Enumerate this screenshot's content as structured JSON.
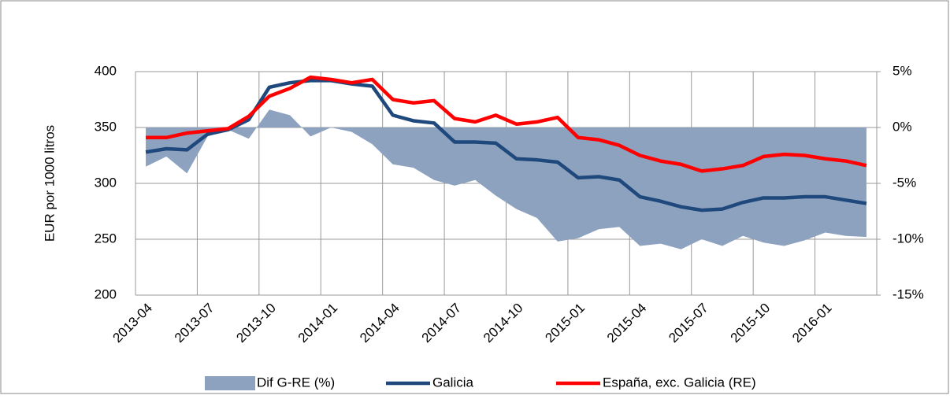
{
  "chart_data": {
    "type": "line",
    "y_label": "EUR por 1000 litros",
    "categories": [
      "2013-04",
      null,
      null,
      "2013-07",
      null,
      null,
      "2013-10",
      null,
      null,
      "2014-01",
      null,
      null,
      "2014-04",
      null,
      null,
      "2014-07",
      null,
      null,
      "2014-10",
      null,
      null,
      "2015-01",
      null,
      null,
      "2015-04",
      null,
      null,
      "2015-07",
      null,
      null,
      "2015-10",
      null,
      null,
      "2016-01",
      null,
      null
    ],
    "series": [
      {
        "name": "Dif G-RE (%)",
        "color": "#8da2bf",
        "kind": "area",
        "axis": "y2",
        "values": [
          -3.5,
          -2.6,
          -4.1,
          -0.8,
          -0.2,
          -1.0,
          1.6,
          1.1,
          -0.8,
          0,
          -0.4,
          -1.5,
          -3.3,
          -3.6,
          -4.7,
          -5.2,
          -4.7,
          -6.1,
          -7.3,
          -8.1,
          -10.2,
          -9.9,
          -9.1,
          -8.9,
          -10.6,
          -10.4,
          -10.9,
          -10.0,
          -10.6,
          -9.7,
          -10.3,
          -10.6,
          -10.1,
          -9.4,
          -9.7,
          -9.8
        ]
      },
      {
        "name": "Galicia",
        "color": "#1f497d",
        "kind": "line",
        "values": [
          328,
          331,
          330,
          344,
          348,
          357,
          386,
          390,
          392,
          392,
          389,
          387,
          361,
          356,
          354,
          337,
          337,
          336,
          322,
          321,
          319,
          305,
          306,
          303,
          288,
          284,
          279,
          276,
          277,
          283,
          287,
          287,
          288,
          288,
          285,
          282
        ]
      },
      {
        "name": "España, exc. Galicia (RE)",
        "color": "#ff0000",
        "kind": "line",
        "values": [
          341,
          341,
          345,
          347,
          349,
          360,
          378,
          385,
          395,
          393,
          390,
          393,
          375,
          372,
          374,
          358,
          355,
          361,
          353,
          355,
          359,
          341,
          339,
          334,
          325,
          320,
          317,
          311,
          313,
          316,
          324,
          326,
          325,
          322,
          320,
          316
        ]
      }
    ],
    "ylim": [
      200,
      400
    ],
    "yticks": [
      200,
      250,
      300,
      350,
      400
    ],
    "y2lim": [
      -15,
      5
    ],
    "y2ticks": [
      {
        "value": -15,
        "label": "-15%"
      },
      {
        "value": -10,
        "label": "-10%"
      },
      {
        "value": -5,
        "label": "-5%"
      },
      {
        "value": 0,
        "label": "0%"
      },
      {
        "value": 5,
        "label": "5%"
      }
    ],
    "grid": true,
    "legend": "bottom"
  }
}
